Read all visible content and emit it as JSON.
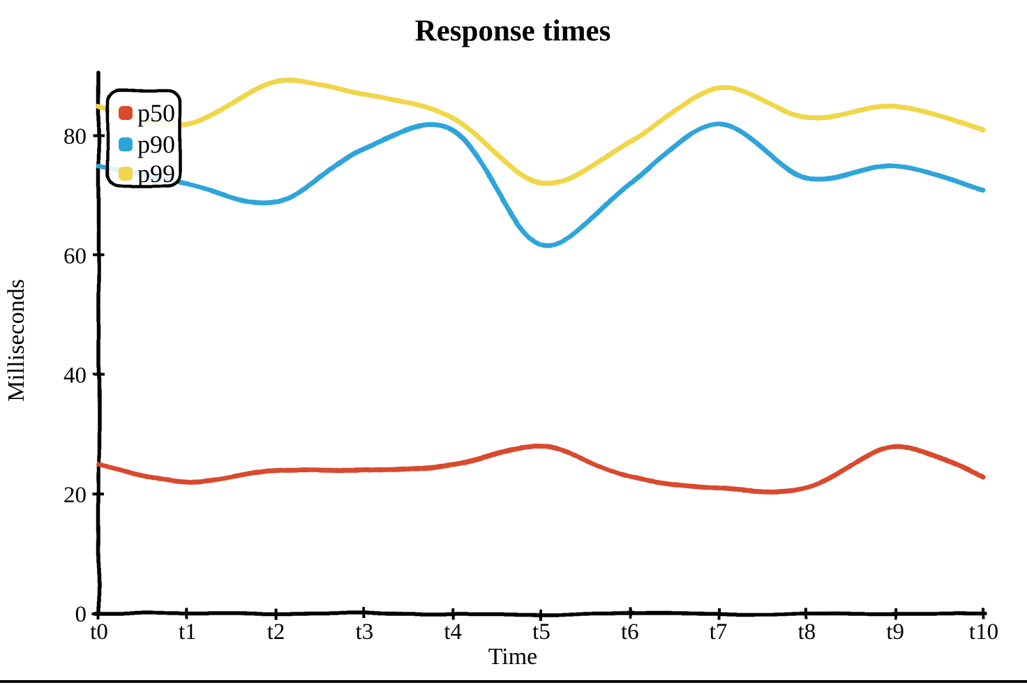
{
  "page": {
    "background": "#ffffff"
  },
  "chart_data": {
    "type": "line",
    "title": "Response times",
    "xlabel": "Time",
    "ylabel": "Milliseconds",
    "categories": [
      "t0",
      "t1",
      "t2",
      "t3",
      "t4",
      "t5",
      "t6",
      "t7",
      "t8",
      "t9",
      "t10"
    ],
    "y_ticks": [
      0,
      20,
      40,
      60,
      80
    ],
    "ylim": [
      0,
      90
    ],
    "grid": false,
    "legend_position": "upper-left",
    "axis_color": "#000000",
    "style": "hand-drawn-xkcd",
    "series": [
      {
        "name": "p50",
        "color": "#d94a2e",
        "values": [
          25,
          22,
          24,
          24,
          25,
          28,
          23,
          21,
          21,
          28,
          23
        ]
      },
      {
        "name": "p90",
        "color": "#2da4da",
        "values": [
          75,
          72,
          69,
          78,
          81,
          62,
          72,
          82,
          73,
          75,
          71
        ]
      },
      {
        "name": "p99",
        "color": "#f0d64a",
        "values": [
          85,
          82,
          89,
          87,
          83,
          72,
          79,
          88,
          83,
          85,
          81
        ]
      }
    ]
  }
}
